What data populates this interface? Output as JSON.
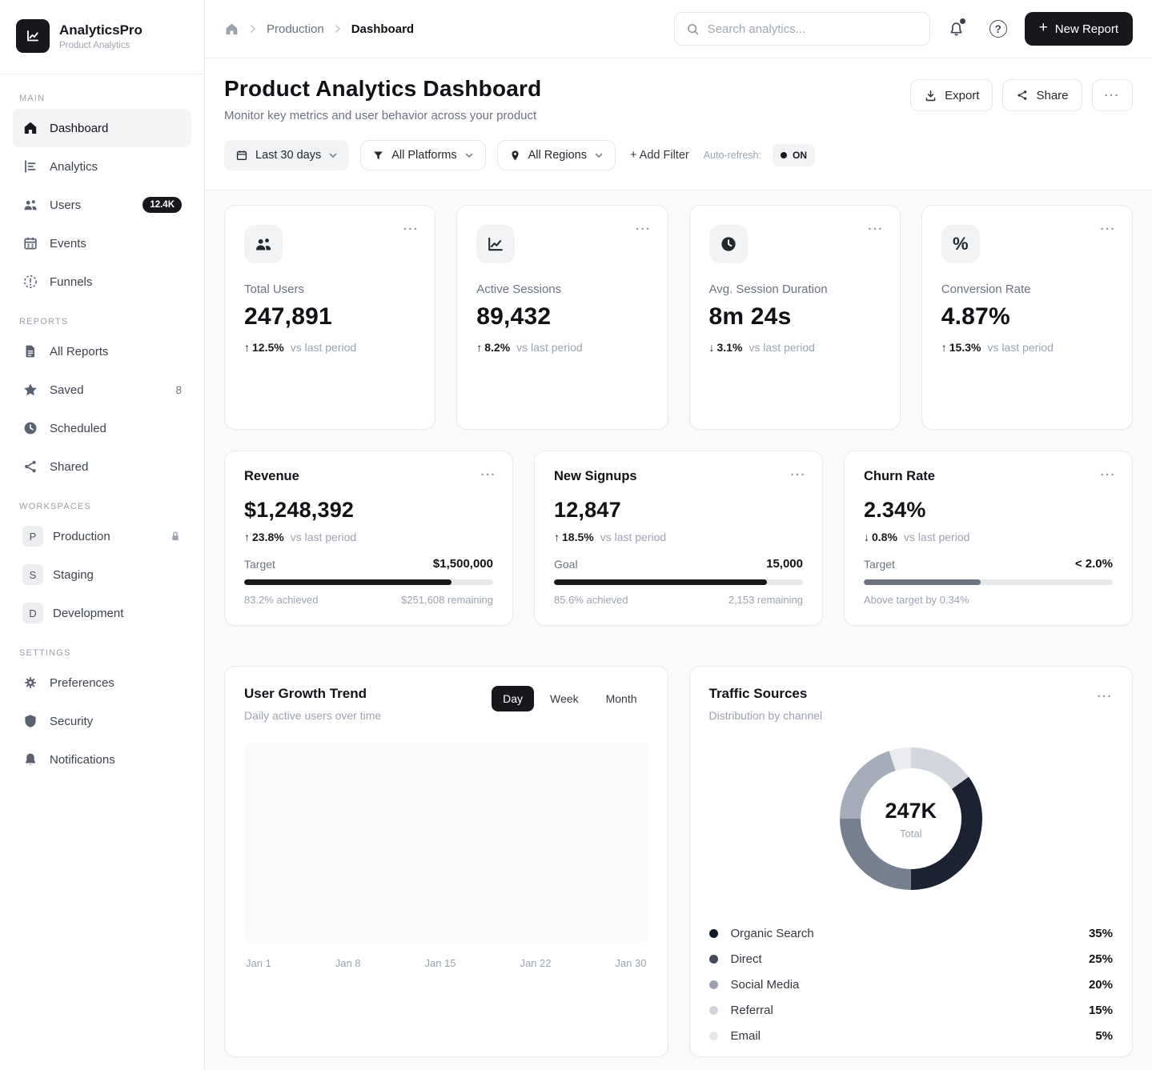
{
  "icons": {
    "plus": "+",
    "question": "?",
    "ellipsis": "···",
    "percent": "%",
    "arrow_up": "↑",
    "arrow_down": "↓"
  },
  "app": {
    "name": "AnalyticsPro",
    "tagline": "Product Analytics"
  },
  "sidebar": {
    "sections": [
      {
        "title": "MAIN",
        "items": [
          {
            "label": "Dashboard"
          },
          {
            "label": "Analytics"
          },
          {
            "label": "Users",
            "badge": "12.4K"
          },
          {
            "label": "Events"
          },
          {
            "label": "Funnels"
          }
        ]
      },
      {
        "title": "REPORTS",
        "items": [
          {
            "label": "All Reports"
          },
          {
            "label": "Saved",
            "count": "8"
          },
          {
            "label": "Scheduled"
          },
          {
            "label": "Shared"
          }
        ]
      },
      {
        "title": "WORKSPACES",
        "items": [
          {
            "label": "Production",
            "letter": "P"
          },
          {
            "label": "Staging",
            "letter": "S"
          },
          {
            "label": "Development",
            "letter": "D"
          }
        ]
      },
      {
        "title": "SETTINGS",
        "items": [
          {
            "label": "Preferences"
          },
          {
            "label": "Security"
          },
          {
            "label": "Notifications"
          }
        ]
      }
    ]
  },
  "header": {
    "breadcrumb": {
      "parent": "Production",
      "current": "Dashboard"
    },
    "search_placeholder": "Search analytics...",
    "new_report_label": "New Report"
  },
  "page": {
    "title": "Product Analytics Dashboard",
    "subtitle": "Monitor key metrics and user behavior across your product",
    "export_label": "Export",
    "share_label": "Share"
  },
  "filters": {
    "date_range": "Last 30 days",
    "platform": "All Platforms",
    "region": "All Regions",
    "add_filter": "+ Add Filter",
    "auto_refresh_label": "Auto-refresh:",
    "auto_refresh_state": "ON"
  },
  "kpis": [
    {
      "label": "Total Users",
      "value": "247,891",
      "delta": "12.5%",
      "direction": "up",
      "compare": "vs last period"
    },
    {
      "label": "Active Sessions",
      "value": "89,432",
      "delta": "8.2%",
      "direction": "up",
      "compare": "vs last period"
    },
    {
      "label": "Avg. Session Duration",
      "value": "8m 24s",
      "delta": "3.1%",
      "direction": "down",
      "compare": "vs last period"
    },
    {
      "label": "Conversion Rate",
      "value": "4.87%",
      "delta": "15.3%",
      "direction": "up",
      "compare": "vs last period"
    }
  ],
  "goal_cards": [
    {
      "title": "Revenue",
      "value": "$1,248,392",
      "delta": "23.8%",
      "direction": "up",
      "compare": "vs last period",
      "target_label": "Target",
      "target_value": "$1,500,000",
      "progress_pct": 83.2,
      "bar_color": "#17181b",
      "footer_left": "83.2% achieved",
      "footer_right": "$251,608 remaining"
    },
    {
      "title": "New Signups",
      "value": "12,847",
      "delta": "18.5%",
      "direction": "up",
      "compare": "vs last period",
      "target_label": "Goal",
      "target_value": "15,000",
      "progress_pct": 85.6,
      "bar_color": "#17181b",
      "footer_left": "85.6% achieved",
      "footer_right": "2,153 remaining"
    },
    {
      "title": "Churn Rate",
      "value": "2.34%",
      "delta": "0.8%",
      "direction": "down",
      "compare": "vs last period",
      "target_label": "Target",
      "target_value": "< 2.0%",
      "progress_pct": 47,
      "bar_color": "#6b7280",
      "footer_left": "Above target by 0.34%",
      "footer_right": ""
    }
  ],
  "growth_chart": {
    "title": "User Growth Trend",
    "subtitle": "Daily active users over time",
    "tabs": [
      "Day",
      "Week",
      "Month"
    ],
    "active_tab": "Day",
    "x_ticks": [
      "Jan 1",
      "Jan 8",
      "Jan 15",
      "Jan 22",
      "Jan 30"
    ]
  },
  "traffic": {
    "title": "Traffic Sources",
    "subtitle": "Distribution by channel",
    "center_value": "247K",
    "center_label": "Total",
    "donut_start_deg": 342,
    "donut_order": [
      "Email",
      "Referral",
      "Organic Search",
      "Direct",
      "Social Media"
    ],
    "sources": [
      {
        "label": "Organic Search",
        "pct": "35%",
        "value": 35,
        "donut_color": "#1b2332",
        "dot_color": "#111827"
      },
      {
        "label": "Direct",
        "pct": "25%",
        "value": 25,
        "donut_color": "#76808f",
        "dot_color": "#434b56"
      },
      {
        "label": "Social Media",
        "pct": "20%",
        "value": 20,
        "donut_color": "#a5adba",
        "dot_color": "#9ca3af"
      },
      {
        "label": "Referral",
        "pct": "15%",
        "value": 15,
        "donut_color": "#d2d7de",
        "dot_color": "#d1d5db"
      },
      {
        "label": "Email",
        "pct": "5%",
        "value": 5,
        "donut_color": "#e9ebee",
        "dot_color": "#e5e7eb"
      }
    ]
  },
  "chart_data": [
    {
      "type": "pie",
      "title": "Traffic Sources",
      "subtitle": "Distribution by channel",
      "categories": [
        "Organic Search",
        "Direct",
        "Social Media",
        "Referral",
        "Email"
      ],
      "values": [
        35,
        25,
        20,
        15,
        5
      ],
      "unit": "%",
      "center_total": "247K",
      "legend_position": "bottom"
    },
    {
      "type": "line",
      "title": "User Growth Trend",
      "subtitle": "Daily active users over time",
      "x": [
        "Jan 1",
        "Jan 8",
        "Jan 15",
        "Jan 22",
        "Jan 30"
      ],
      "series": [],
      "grid": false
    }
  ]
}
